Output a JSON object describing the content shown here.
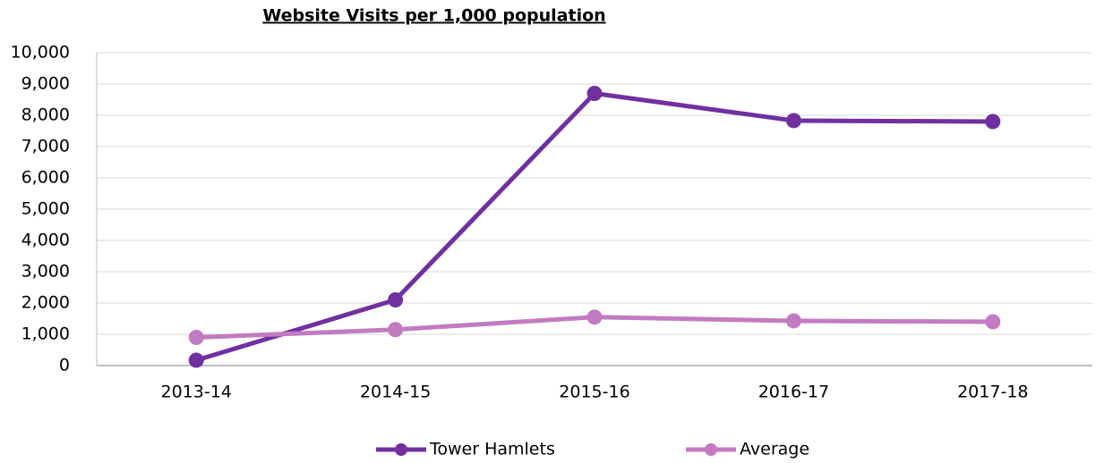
{
  "chart_data": {
    "type": "line",
    "title": "Website Visits per 1,000 population",
    "categories": [
      "2013-14",
      "2014-15",
      "2015-16",
      "2016-17",
      "2017-18"
    ],
    "series": [
      {
        "name": "Tower Hamlets",
        "color": "#7030a0",
        "values": [
          170,
          2100,
          8700,
          7830,
          7800
        ]
      },
      {
        "name": "Average",
        "color": "#c27bc0",
        "values": [
          900,
          1150,
          1550,
          1430,
          1400
        ]
      }
    ],
    "ylim": [
      0,
      10000
    ],
    "yticks": [
      0,
      {
        "value": 1000,
        "label": "1,000"
      },
      {
        "value": 2000,
        "label": "2,000"
      },
      {
        "value": 3000,
        "label": "3,000"
      },
      {
        "value": 4000,
        "label": "4,000"
      },
      {
        "value": 5000,
        "label": "5,000"
      },
      {
        "value": 6000,
        "label": "6,000"
      },
      {
        "value": 7000,
        "label": "7,000"
      },
      {
        "value": 8000,
        "label": "8,000"
      },
      {
        "value": 9000,
        "label": "9,000"
      },
      {
        "value": 10000,
        "label": "10,000"
      }
    ],
    "grid": true,
    "legend": "bottom"
  }
}
